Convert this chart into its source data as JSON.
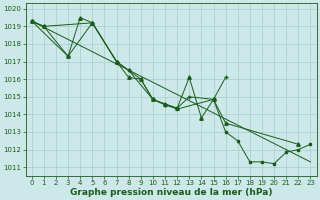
{
  "xlabel": "Graphe pression niveau de la mer (hPa)",
  "background_color": "#cce8e8",
  "grid_color": "#aacccc",
  "line_color": "#1a5c1a",
  "xlim_min": -0.5,
  "xlim_max": 23.5,
  "ylim_min": 1010.5,
  "ylim_max": 1020.3,
  "yticks": [
    1011,
    1012,
    1013,
    1014,
    1015,
    1016,
    1017,
    1018,
    1019,
    1020
  ],
  "xticks": [
    0,
    1,
    2,
    3,
    4,
    5,
    6,
    7,
    8,
    9,
    10,
    11,
    12,
    13,
    14,
    15,
    16,
    17,
    18,
    19,
    20,
    21,
    22,
    23
  ],
  "series1_x": [
    0,
    1,
    3,
    4,
    5,
    7,
    8,
    9,
    10,
    11,
    12,
    13,
    14,
    15,
    16,
    22
  ],
  "series1_y": [
    1019.3,
    1019.0,
    1017.3,
    1019.5,
    1019.2,
    1017.0,
    1016.1,
    1016.0,
    1014.85,
    1014.6,
    1014.35,
    1016.1,
    1013.8,
    1014.85,
    1013.5,
    1012.3
  ],
  "series2_x": [
    0,
    3,
    5,
    7,
    8,
    10,
    11,
    12,
    13,
    15,
    16
  ],
  "series2_y": [
    1019.3,
    1017.3,
    1019.2,
    1017.0,
    1016.5,
    1014.85,
    1014.55,
    1014.35,
    1015.0,
    1014.85,
    1016.1
  ],
  "series3_x": [
    0,
    1,
    5,
    7,
    8,
    9,
    10,
    11,
    12,
    15,
    16,
    17,
    18,
    19,
    20,
    21,
    22,
    23
  ],
  "series3_y": [
    1019.3,
    1019.0,
    1019.2,
    1017.0,
    1016.5,
    1016.0,
    1014.85,
    1014.55,
    1014.3,
    1014.85,
    1013.0,
    1012.5,
    1011.3,
    1011.3,
    1011.2,
    1011.85,
    1012.0,
    1012.3
  ],
  "series4_x": [
    0,
    23
  ],
  "series4_y": [
    1019.3,
    1011.3
  ],
  "tick_fontsize": 5,
  "xlabel_fontsize": 6.5
}
